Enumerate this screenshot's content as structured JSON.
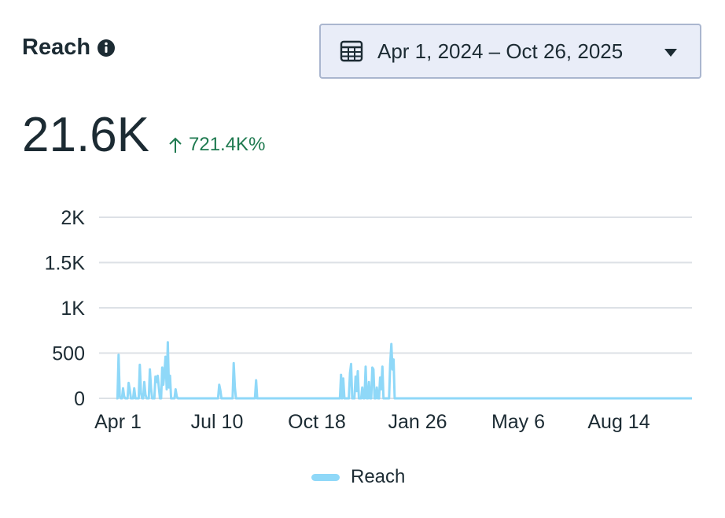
{
  "header": {
    "title": "Reach",
    "info_icon": "info-icon",
    "date_range": "Apr 1, 2024 – Oct 26, 2025",
    "calendar_icon": "calendar-icon",
    "dropdown_icon": "caret-down-icon"
  },
  "metric": {
    "value": "21.6K",
    "change": "721.4K%",
    "change_direction_icon": "arrow-up-icon",
    "change_color": "#1f7a50"
  },
  "chart_data": {
    "type": "line",
    "series": [
      {
        "name": "Reach",
        "color": "#8fd8f8",
        "values": [
          0,
          0,
          480,
          20,
          0,
          0,
          110,
          20,
          0,
          0,
          0,
          170,
          90,
          0,
          0,
          0,
          110,
          0,
          0,
          0,
          0,
          370,
          60,
          0,
          0,
          180,
          40,
          0,
          0,
          0,
          320,
          110,
          0,
          0,
          0,
          240,
          180,
          250,
          120,
          0,
          0,
          340,
          150,
          280,
          460,
          100,
          620,
          120,
          250,
          0,
          0,
          0,
          0,
          100,
          20,
          0,
          0,
          0,
          0,
          0,
          0,
          0,
          0,
          0,
          0,
          0,
          0,
          0,
          0,
          0,
          0,
          0,
          0,
          0,
          0,
          0,
          0,
          0,
          0,
          0,
          0,
          0,
          0,
          0,
          0,
          0,
          0,
          0,
          0,
          0,
          0,
          0,
          150,
          90,
          0,
          0,
          0,
          0,
          0,
          0,
          0,
          0,
          0,
          0,
          0,
          390,
          120,
          0,
          0,
          0,
          0,
          0,
          0,
          0,
          0,
          0,
          0,
          0,
          0,
          0,
          0,
          0,
          0,
          0,
          0,
          200,
          0,
          0,
          0,
          0,
          0,
          0,
          0,
          0,
          0,
          0,
          0,
          0,
          0,
          0,
          0,
          0,
          0,
          0,
          0,
          0,
          0,
          0,
          0,
          0,
          0,
          0,
          0,
          0,
          0,
          0,
          0,
          0,
          0,
          0,
          0,
          0,
          0,
          0,
          0,
          0,
          0,
          0,
          0,
          0,
          0,
          0,
          0,
          0,
          0,
          0,
          0,
          0,
          0,
          0,
          0,
          0,
          0,
          0,
          0,
          0,
          0,
          0,
          0,
          0,
          0,
          0,
          0,
          0,
          0,
          0,
          0,
          0,
          0,
          0,
          0,
          260,
          0,
          220,
          0,
          0,
          0,
          0,
          0,
          280,
          380,
          0,
          0,
          0,
          240,
          80,
          300,
          0,
          0,
          0,
          120,
          0,
          0,
          350,
          0,
          0,
          180,
          0,
          0,
          340,
          320,
          0,
          0,
          120,
          0,
          0,
          230,
          100,
          350,
          0,
          0,
          0,
          0,
          0,
          0,
          380,
          600,
          320,
          430,
          0,
          0,
          0,
          0,
          0,
          0,
          0,
          0,
          0,
          0,
          0,
          0,
          0,
          0,
          0,
          0,
          0,
          0,
          0,
          0,
          0,
          0,
          0,
          0,
          0,
          0,
          0,
          0,
          0,
          0,
          0,
          0,
          0,
          0,
          0,
          0,
          0,
          0,
          0,
          0,
          0,
          0,
          0,
          0,
          0,
          0,
          0,
          0,
          0,
          0,
          0,
          0,
          0,
          0,
          0,
          0,
          0,
          0,
          0,
          0,
          0,
          0,
          0,
          0,
          0,
          0,
          0,
          0,
          0,
          0,
          0,
          0,
          0,
          0,
          0,
          0,
          0,
          0,
          0,
          0,
          0,
          0,
          0,
          0,
          0,
          0,
          0,
          0,
          0,
          0,
          0,
          0,
          0,
          0,
          0,
          0,
          0,
          0,
          0,
          0,
          0,
          0,
          0,
          0,
          0,
          0,
          0,
          0,
          0,
          0,
          0,
          0,
          0,
          0,
          0,
          0,
          0,
          0,
          0,
          0,
          0,
          0,
          0,
          0,
          0,
          0,
          0,
          0,
          0,
          0,
          0,
          0,
          0,
          0,
          0,
          0,
          0,
          0,
          0,
          0,
          0,
          0,
          0,
          0,
          0,
          0,
          0,
          0,
          0,
          0,
          0,
          0,
          0,
          0,
          0,
          0,
          0,
          0,
          0,
          0,
          0,
          0,
          0,
          0,
          0,
          0,
          0,
          0,
          0,
          0,
          0,
          0,
          0,
          0,
          0,
          0,
          0,
          0,
          0,
          0,
          0,
          0,
          0,
          0,
          0,
          0,
          0,
          0,
          0,
          0,
          0,
          0,
          0,
          0,
          0,
          0,
          0,
          0,
          0,
          0,
          0,
          0,
          0,
          0,
          0,
          0,
          0,
          0,
          0,
          0,
          0,
          0,
          0,
          0,
          0,
          0,
          0,
          0,
          0,
          0,
          0,
          0,
          0,
          0,
          0,
          0,
          0,
          0,
          0,
          0,
          0,
          0,
          0,
          0,
          0,
          0,
          0,
          0,
          0,
          0,
          0,
          0,
          0,
          0,
          0,
          0,
          0,
          0,
          0,
          0,
          0,
          0,
          0,
          0,
          0,
          0,
          0,
          0,
          0,
          0,
          0,
          0,
          0,
          0,
          0,
          0,
          0
        ]
      }
    ],
    "x_tick_labels": [
      "Apr 1",
      "Jul 10",
      "Oct 18",
      "Jan 26",
      "May 6",
      "Aug 14"
    ],
    "y_tick_labels": [
      "0",
      "500",
      "1K",
      "1.5K",
      "2K"
    ],
    "ylim": [
      0,
      2000
    ],
    "grid": true,
    "legend": "bottom-center"
  },
  "legend": {
    "label": "Reach"
  }
}
